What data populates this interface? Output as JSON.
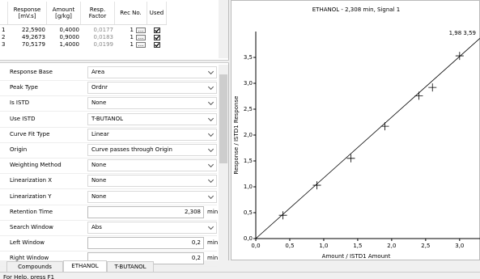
{
  "table": {
    "headers": [
      "",
      "Response [mV.s]",
      "Amount [g/kg]",
      "Resp. Factor",
      "Rec No.",
      "Used"
    ],
    "button_label": "...",
    "rows": [
      {
        "no": "1",
        "response": "22,5900",
        "amount": "0,4000",
        "factor": "0,0177",
        "rec": "1",
        "used": true
      },
      {
        "no": "2",
        "response": "49,2673",
        "amount": "0,9000",
        "factor": "0,0183",
        "rec": "1",
        "used": true
      },
      {
        "no": "3",
        "response": "70,5179",
        "amount": "1,4000",
        "factor": "0,0199",
        "rec": "1",
        "used": true
      }
    ]
  },
  "properties": [
    {
      "label": "Response Base",
      "value": "Area",
      "kind": "combo"
    },
    {
      "label": "Peak Type",
      "value": "Ordnr",
      "kind": "combo"
    },
    {
      "label": "Is ISTD",
      "value": "None",
      "kind": "combo"
    },
    {
      "label": "Use ISTD",
      "value": "T-BUTANOL",
      "kind": "combo"
    },
    {
      "label": "Curve Fit Type",
      "value": "Linear",
      "kind": "combo"
    },
    {
      "label": "Origin",
      "value": "Curve passes through Origin",
      "kind": "combo"
    },
    {
      "label": "Weighting Method",
      "value": "None",
      "kind": "combo"
    },
    {
      "label": "Linearization X",
      "value": "None",
      "kind": "combo"
    },
    {
      "label": "Linearization Y",
      "value": "None",
      "kind": "combo"
    },
    {
      "label": "Retention Time",
      "value": "2,308",
      "unit": "min",
      "kind": "edit"
    },
    {
      "label": "Search Window",
      "value": "Abs",
      "kind": "combo"
    },
    {
      "label": "Left Window",
      "value": "0,2",
      "unit": "min",
      "kind": "edit"
    },
    {
      "label": "Right Window",
      "value": "0,2",
      "unit": "min",
      "kind": "edit"
    }
  ],
  "tabs": [
    "Compounds",
    "ETHANOL",
    "T-BUTANOL"
  ],
  "active_tab": 1,
  "status": "For Help, press F1",
  "chart_data": {
    "type": "scatter",
    "title": "ETHANOL - 2,308 min, Signal 1",
    "cursor_readout": "1,98 3,59",
    "xlabel": "Amount / ISTD1 Amount",
    "ylabel": "Response / ISTD1 Response",
    "xlim": [
      0,
      3.3
    ],
    "ylim": [
      0,
      4.0
    ],
    "xticks": [
      {
        "value": 0,
        "label": "0,0"
      },
      {
        "value": 0.5,
        "label": "0,5"
      },
      {
        "value": 1,
        "label": "1,0"
      },
      {
        "value": 1.5,
        "label": "1,5"
      },
      {
        "value": 2,
        "label": "2,0"
      },
      {
        "value": 2.5,
        "label": "2,5"
      },
      {
        "value": 3,
        "label": "3,0"
      }
    ],
    "yticks": [
      {
        "value": 0,
        "label": "0,0"
      },
      {
        "value": 0.5,
        "label": "0,5"
      },
      {
        "value": 1,
        "label": "1,0"
      },
      {
        "value": 1.5,
        "label": "1,5"
      },
      {
        "value": 2,
        "label": "2,0"
      },
      {
        "value": 2.5,
        "label": "2,5"
      },
      {
        "value": 3,
        "label": "3,0"
      },
      {
        "value": 3.5,
        "label": "3,5"
      }
    ],
    "color": "#000000",
    "x": [
      0.4,
      0.9,
      1.4,
      1.9,
      2.4,
      2.6,
      3.0
    ],
    "values": [
      0.45,
      1.03,
      1.55,
      2.17,
      2.76,
      2.92,
      3.53
    ],
    "fit_line": {
      "x": [
        0,
        3.3
      ],
      "y": [
        0,
        3.87
      ]
    }
  }
}
